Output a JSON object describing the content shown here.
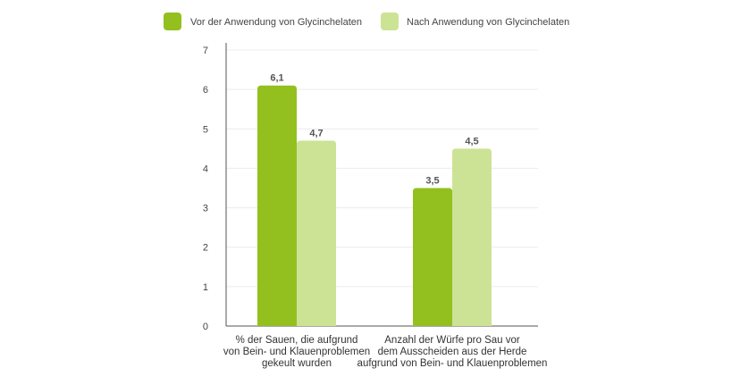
{
  "chart_data": {
    "type": "bar",
    "title": "",
    "xlabel": "",
    "ylabel": "",
    "ylim": [
      0,
      7
    ],
    "yticks": [
      0,
      1,
      2,
      3,
      4,
      5,
      6,
      7
    ],
    "grid": true,
    "legend_position": "top",
    "categories": [
      [
        "% der Sauen, die aufgrund",
        "von Bein- und Klauenproblemen",
        "gekeult wurden"
      ],
      [
        "Anzahl der Würfe pro Sau vor",
        "dem Ausscheiden aus der Herde",
        "aufgrund von Bein- und Klauenproblemen"
      ]
    ],
    "series": [
      {
        "name": "Vor der Anwendung von Glycinchelaten",
        "color": "#93c01f",
        "values": [
          6.1,
          3.5
        ],
        "labels": [
          "6,1",
          "3,5"
        ]
      },
      {
        "name": "Nach Anwendung von Glycinchelaten",
        "color": "#cce396",
        "values": [
          4.7,
          4.5
        ],
        "labels": [
          "4,7",
          "4,5"
        ]
      }
    ]
  }
}
